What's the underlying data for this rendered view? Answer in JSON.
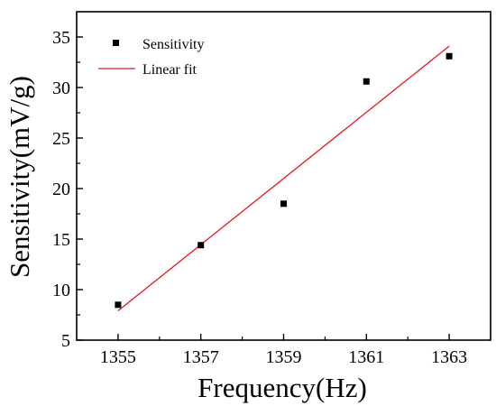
{
  "chart_data": {
    "type": "scatter",
    "title": "",
    "xlabel": "Frequency(Hz)",
    "ylabel": "Sensitivity(mV/g)",
    "xlim": [
      1354,
      1364
    ],
    "ylim": [
      5,
      37.5
    ],
    "xticks": [
      1355,
      1357,
      1359,
      1361,
      1363
    ],
    "yticks": [
      5,
      10,
      15,
      20,
      25,
      30,
      35
    ],
    "grid": false,
    "legend_position": "top-left",
    "series": [
      {
        "name": "Sensitivity",
        "kind": "scatter",
        "marker": "square",
        "color": "#000000",
        "x": [
          1355,
          1357,
          1359,
          1361,
          1363
        ],
        "y": [
          8.5,
          14.4,
          18.5,
          30.6,
          33.1
        ]
      },
      {
        "name": "Linear fit",
        "kind": "line",
        "color": "#e8161b",
        "x": [
          1355,
          1363
        ],
        "y": [
          7.9,
          34.1
        ]
      }
    ]
  }
}
